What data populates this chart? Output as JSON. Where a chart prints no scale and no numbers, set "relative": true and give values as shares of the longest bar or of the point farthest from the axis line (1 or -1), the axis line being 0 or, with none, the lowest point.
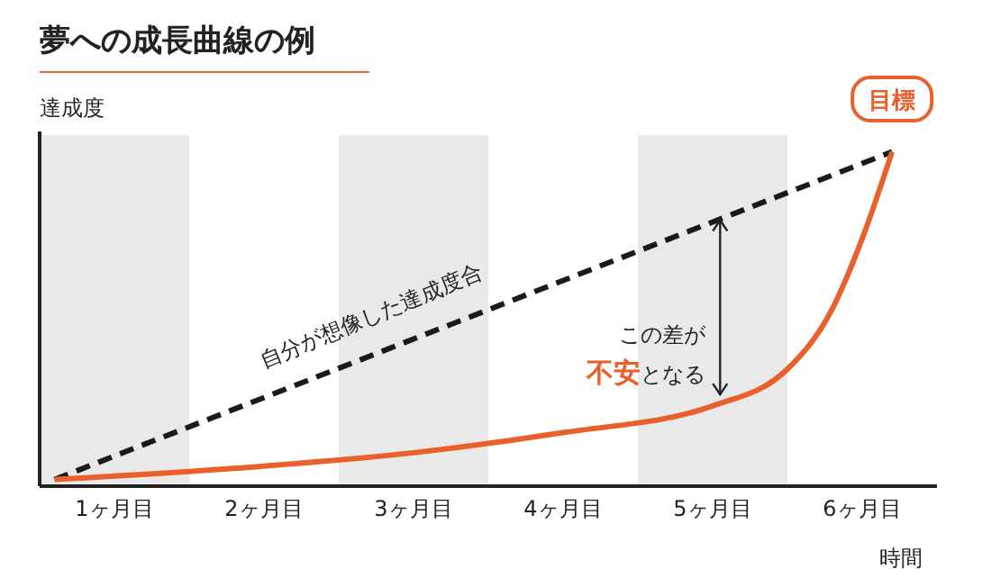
{
  "chart_data": {
    "type": "line",
    "title": "夢への成長曲線の例",
    "ylabel": "達成度",
    "xlabel": "時間",
    "relative": true,
    "xlim": [
      0,
      6
    ],
    "xticks": [
      {
        "value": 0.5,
        "label": "1ヶ月目"
      },
      {
        "value": 1.5,
        "label": "2ヶ月目"
      },
      {
        "value": 2.5,
        "label": "3ヶ月目"
      },
      {
        "value": 3.5,
        "label": "4ヶ月目"
      },
      {
        "value": 4.5,
        "label": "5ヶ月目"
      },
      {
        "value": 5.5,
        "label": "6ヶ月目"
      }
    ],
    "series": [
      {
        "x": [
          0.1,
          5.7
        ],
        "values": [
          0.02,
          1
        ],
        "color": "#1a1a1a",
        "line_style": "dashed"
      },
      {
        "x": [
          0.1,
          1.5,
          2.5,
          3.5,
          4.5,
          5.0,
          5.3,
          5.5,
          5.7
        ],
        "values": [
          0.02,
          0.06,
          0.1,
          0.16,
          0.24,
          0.35,
          0.53,
          0.74,
          1
        ],
        "color": "#e8602c",
        "line_style": "solid"
      }
    ],
    "bands": [
      {
        "axis": "x",
        "from": 0,
        "to": 1,
        "color": "#e9e9ea"
      },
      {
        "axis": "x",
        "from": 2,
        "to": 3,
        "color": "#e9e9ea"
      },
      {
        "axis": "x",
        "from": 4,
        "to": 5,
        "color": "#e9e9ea"
      }
    ],
    "annotations": [
      {
        "text": "目標",
        "x": 5.7,
        "y": 1
      },
      "自分が想像した達成度合",
      "この差が",
      "不安",
      "となる"
    ],
    "marker": "none"
  }
}
